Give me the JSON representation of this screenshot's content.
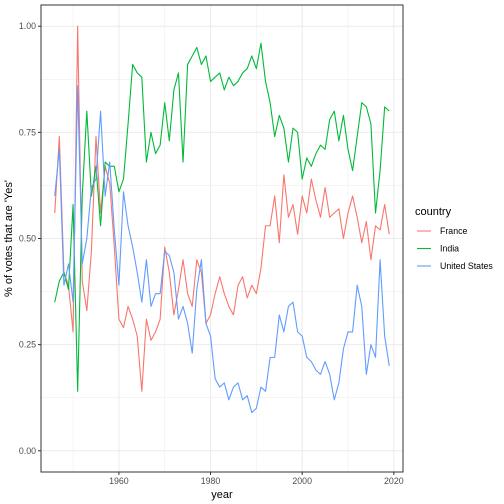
{
  "chart_data": {
    "type": "line",
    "xlabel": "year",
    "ylabel": "% of votes that are 'Yes'",
    "xlim": [
      1943,
      2022
    ],
    "ylim": [
      -0.05,
      1.05
    ],
    "x_ticks": [
      1960,
      1980,
      2000,
      2020
    ],
    "x_tick_labels": [
      "1960",
      "1980",
      "2000",
      "2020"
    ],
    "y_ticks": [
      0,
      0.25,
      0.5,
      0.75,
      1
    ],
    "y_tick_labels": [
      "0.00",
      "0.25",
      "0.50",
      "0.75",
      "1.00"
    ],
    "grid": true,
    "legend": {
      "title": "country",
      "position": "right"
    },
    "series": [
      {
        "name": "France",
        "color": "#F8766D",
        "x": [
          1946,
          1947,
          1948,
          1949,
          1950,
          1951,
          1952,
          1953,
          1954,
          1955,
          1956,
          1957,
          1958,
          1959,
          1960,
          1961,
          1962,
          1963,
          1964,
          1965,
          1966,
          1967,
          1968,
          1969,
          1970,
          1971,
          1972,
          1973,
          1974,
          1975,
          1976,
          1977,
          1978,
          1979,
          1980,
          1981,
          1982,
          1983,
          1984,
          1985,
          1986,
          1987,
          1988,
          1989,
          1990,
          1991,
          1992,
          1993,
          1994,
          1995,
          1996,
          1997,
          1998,
          1999,
          2000,
          2001,
          2002,
          2003,
          2004,
          2005,
          2006,
          2007,
          2008,
          2009,
          2010,
          2011,
          2012,
          2013,
          2014,
          2015,
          2016,
          2017,
          2018,
          2019
        ],
        "y": [
          0.56,
          0.74,
          0.42,
          0.39,
          0.28,
          1.0,
          0.4,
          0.33,
          0.47,
          0.74,
          0.56,
          0.67,
          0.63,
          0.48,
          0.31,
          0.29,
          0.34,
          0.31,
          0.27,
          0.14,
          0.31,
          0.26,
          0.28,
          0.31,
          0.48,
          0.42,
          0.32,
          0.38,
          0.45,
          0.37,
          0.34,
          0.45,
          0.42,
          0.3,
          0.32,
          0.37,
          0.41,
          0.37,
          0.34,
          0.32,
          0.39,
          0.41,
          0.36,
          0.39,
          0.37,
          0.43,
          0.53,
          0.53,
          0.6,
          0.49,
          0.65,
          0.55,
          0.58,
          0.51,
          0.6,
          0.56,
          0.64,
          0.59,
          0.55,
          0.62,
          0.55,
          0.56,
          0.57,
          0.5,
          0.56,
          0.6,
          0.55,
          0.49,
          0.54,
          0.45,
          0.53,
          0.52,
          0.58,
          0.51
        ]
      },
      {
        "name": "India",
        "color": "#00BA38",
        "x": [
          1946,
          1947,
          1948,
          1949,
          1950,
          1951,
          1952,
          1953,
          1954,
          1955,
          1956,
          1957,
          1958,
          1959,
          1960,
          1961,
          1962,
          1963,
          1964,
          1965,
          1966,
          1967,
          1968,
          1969,
          1970,
          1971,
          1972,
          1973,
          1974,
          1975,
          1976,
          1977,
          1978,
          1979,
          1980,
          1981,
          1982,
          1983,
          1984,
          1985,
          1986,
          1987,
          1988,
          1989,
          1990,
          1991,
          1992,
          1993,
          1994,
          1995,
          1996,
          1997,
          1998,
          1999,
          2000,
          2001,
          2002,
          2003,
          2004,
          2005,
          2006,
          2007,
          2008,
          2009,
          2010,
          2011,
          2012,
          2013,
          2014,
          2015,
          2016,
          2017,
          2018,
          2019
        ],
        "y": [
          0.35,
          0.4,
          0.42,
          0.38,
          0.58,
          0.14,
          0.6,
          0.8,
          0.6,
          0.67,
          0.53,
          0.68,
          0.67,
          0.67,
          0.61,
          0.64,
          0.77,
          0.91,
          0.89,
          0.88,
          0.68,
          0.75,
          0.7,
          0.72,
          0.82,
          0.73,
          0.85,
          0.89,
          0.68,
          0.91,
          0.93,
          0.95,
          0.91,
          0.93,
          0.87,
          0.88,
          0.89,
          0.85,
          0.88,
          0.86,
          0.87,
          0.89,
          0.9,
          0.93,
          0.9,
          0.96,
          0.87,
          0.82,
          0.74,
          0.79,
          0.76,
          0.68,
          0.76,
          0.75,
          0.64,
          0.69,
          0.67,
          0.7,
          0.72,
          0.71,
          0.78,
          0.8,
          0.73,
          0.79,
          0.71,
          0.66,
          0.74,
          0.82,
          0.81,
          0.77,
          0.56,
          0.66,
          0.81,
          0.8
        ]
      },
      {
        "name": "United States",
        "color": "#619CFF",
        "x": [
          1946,
          1947,
          1948,
          1949,
          1950,
          1951,
          1952,
          1953,
          1954,
          1955,
          1956,
          1957,
          1958,
          1959,
          1960,
          1961,
          1962,
          1963,
          1964,
          1965,
          1966,
          1967,
          1968,
          1969,
          1970,
          1971,
          1972,
          1973,
          1974,
          1975,
          1976,
          1977,
          1978,
          1979,
          1980,
          1981,
          1982,
          1983,
          1984,
          1985,
          1986,
          1987,
          1988,
          1989,
          1990,
          1991,
          1992,
          1993,
          1994,
          1995,
          1996,
          1997,
          1998,
          1999,
          2000,
          2001,
          2002,
          2003,
          2004,
          2005,
          2006,
          2007,
          2008,
          2009,
          2010,
          2011,
          2012,
          2013,
          2014,
          2015,
          2016,
          2017,
          2018,
          2019
        ],
        "y": [
          0.6,
          0.71,
          0.39,
          0.44,
          0.35,
          0.86,
          0.44,
          0.5,
          0.62,
          0.64,
          0.8,
          0.6,
          0.68,
          0.52,
          0.39,
          0.61,
          0.53,
          0.48,
          0.42,
          0.35,
          0.45,
          0.34,
          0.37,
          0.37,
          0.47,
          0.46,
          0.42,
          0.31,
          0.34,
          0.3,
          0.23,
          0.38,
          0.45,
          0.3,
          0.27,
          0.17,
          0.15,
          0.16,
          0.12,
          0.15,
          0.16,
          0.12,
          0.13,
          0.09,
          0.1,
          0.15,
          0.14,
          0.22,
          0.22,
          0.32,
          0.28,
          0.34,
          0.35,
          0.28,
          0.27,
          0.22,
          0.21,
          0.19,
          0.18,
          0.21,
          0.18,
          0.12,
          0.16,
          0.24,
          0.28,
          0.28,
          0.39,
          0.34,
          0.18,
          0.25,
          0.22,
          0.45,
          0.27,
          0.2
        ]
      }
    ]
  }
}
